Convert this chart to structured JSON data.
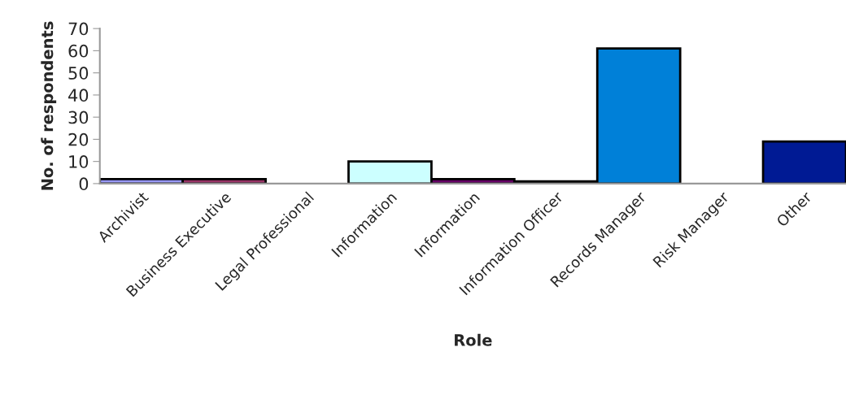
{
  "chart_data": {
    "type": "bar",
    "xlabel": "Role",
    "ylabel": "No. of respondents",
    "categories": [
      "Archivist",
      "Business Executive",
      "Legal Professional",
      "Information",
      "Information",
      "Information Officer",
      "Records Manager",
      "Risk Manager",
      "Other"
    ],
    "values": [
      2,
      2,
      0,
      10,
      2,
      1,
      61,
      0,
      19
    ],
    "colors": [
      "#9999ff",
      "#993366",
      "#ffffcc",
      "#ccffff",
      "#660066",
      "#ff8080",
      "#0080d8",
      "#ccccff",
      "#001a94"
    ],
    "ylim": [
      0,
      70
    ],
    "yticks": [
      0,
      10,
      20,
      30,
      40,
      50,
      60,
      70
    ],
    "grid": false,
    "legend": false
  }
}
